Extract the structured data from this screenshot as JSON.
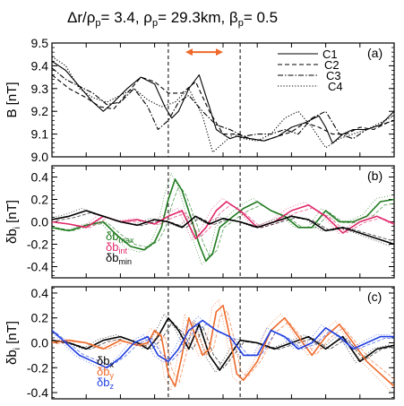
{
  "figure": {
    "title_parts": [
      "Δr/ρ",
      "p",
      "=   3.4, ρ",
      "p",
      "=   29.3km, β",
      "p",
      "= 0.5"
    ]
  },
  "chart_data": [
    {
      "type": "line",
      "panel_label": "(a)",
      "ylabel": "B [nT]",
      "ylim": [
        9.0,
        9.5
      ],
      "yticks": [
        9.0,
        9.1,
        9.2,
        9.3,
        9.4,
        9.5
      ],
      "xlim": [
        0,
        100
      ],
      "vlines": [
        34,
        55
      ],
      "arrow": {
        "from": 39,
        "to": 50,
        "y": 9.46,
        "color": "#ee6a2a"
      },
      "legend": [
        "C1",
        "C2",
        "C3",
        "C4"
      ],
      "series": [
        {
          "name": "C1",
          "style": "solid",
          "color": "#000000",
          "x": [
            0,
            4,
            8,
            12,
            15,
            18,
            22,
            26,
            30,
            33,
            35,
            37,
            40,
            43,
            46,
            48,
            50,
            52,
            54,
            58,
            62,
            66,
            70,
            74,
            78,
            80,
            82,
            85,
            88,
            92,
            96,
            100
          ],
          "y": [
            9.42,
            9.38,
            9.31,
            9.24,
            9.2,
            9.24,
            9.3,
            9.35,
            9.32,
            9.22,
            9.17,
            9.2,
            9.3,
            9.36,
            9.22,
            9.12,
            9.1,
            9.08,
            9.09,
            9.08,
            9.07,
            9.09,
            9.13,
            9.15,
            9.18,
            9.13,
            9.06,
            9.1,
            9.12,
            9.12,
            9.14,
            9.2
          ]
        },
        {
          "name": "C2",
          "style": "dashed",
          "color": "#000000",
          "x": [
            0,
            5,
            10,
            14,
            18,
            22,
            26,
            30,
            34,
            38,
            42,
            46,
            50,
            54,
            58,
            62,
            66,
            70,
            74,
            78,
            82,
            86,
            90,
            94,
            98,
            100
          ],
          "y": [
            9.36,
            9.3,
            9.26,
            9.22,
            9.21,
            9.28,
            9.35,
            9.33,
            9.28,
            9.28,
            9.33,
            9.2,
            9.1,
            9.1,
            9.08,
            9.07,
            9.09,
            9.11,
            9.15,
            9.13,
            9.1,
            9.1,
            9.13,
            9.12,
            9.15,
            9.16
          ]
        },
        {
          "name": "C3",
          "style": "dashdot",
          "color": "#000000",
          "x": [
            0,
            4,
            8,
            12,
            16,
            20,
            24,
            28,
            31,
            34,
            37,
            40,
            44,
            48,
            52,
            56,
            60,
            64,
            68,
            72,
            76,
            80,
            84,
            88,
            92,
            96,
            100
          ],
          "y": [
            9.39,
            9.34,
            9.31,
            9.28,
            9.23,
            9.24,
            9.3,
            9.22,
            9.12,
            9.16,
            9.24,
            9.27,
            9.2,
            9.14,
            9.12,
            9.09,
            9.1,
            9.1,
            9.12,
            9.1,
            9.17,
            9.2,
            9.1,
            9.08,
            9.12,
            9.14,
            9.16
          ]
        },
        {
          "name": "C4",
          "style": "dotted",
          "color": "#000000",
          "x": [
            0,
            4,
            8,
            12,
            16,
            20,
            24,
            28,
            32,
            36,
            40,
            44,
            47,
            50,
            53,
            56,
            60,
            64,
            68,
            72,
            76,
            80,
            84,
            88,
            92,
            96,
            100
          ],
          "y": [
            9.44,
            9.4,
            9.3,
            9.26,
            9.24,
            9.27,
            9.3,
            9.25,
            9.22,
            9.24,
            9.3,
            9.18,
            9.02,
            9.06,
            9.1,
            9.08,
            9.07,
            9.1,
            9.17,
            9.2,
            9.13,
            9.04,
            9.08,
            9.1,
            9.12,
            9.15,
            9.18
          ]
        }
      ]
    },
    {
      "type": "line",
      "panel_label": "(b)",
      "ylabel_parts": [
        "δb",
        "i",
        " [nT]"
      ],
      "ylim": [
        -0.5,
        0.5
      ],
      "yticks": [
        -0.4,
        -0.2,
        0.0,
        0.2,
        0.4
      ],
      "xlim": [
        0,
        100
      ],
      "vlines": [
        34,
        55
      ],
      "component_labels": [
        {
          "text": "δb",
          "sub": "max",
          "color": "#1f7a1f"
        },
        {
          "text": "δb",
          "sub": "int",
          "color": "#e0286a"
        },
        {
          "text": "δb",
          "sub": "min",
          "color": "#000000"
        }
      ],
      "series": [
        {
          "component": "max",
          "color": "#1f7a1f",
          "x": [
            0,
            5,
            10,
            15,
            19,
            23,
            27,
            30,
            32,
            34,
            36,
            38,
            41,
            43,
            45,
            47,
            49,
            51,
            53,
            56,
            60,
            64,
            68,
            72,
            76,
            80,
            84,
            88,
            92,
            96,
            100
          ],
          "y": [
            -0.05,
            -0.08,
            -0.03,
            0.0,
            -0.12,
            -0.22,
            -0.25,
            -0.18,
            -0.05,
            0.2,
            0.38,
            0.28,
            0.0,
            -0.2,
            -0.35,
            -0.28,
            -0.05,
            0.0,
            0.05,
            0.12,
            0.18,
            0.1,
            0.05,
            -0.05,
            -0.05,
            0.1,
            0.0,
            0.0,
            0.05,
            0.18,
            0.2
          ]
        },
        {
          "component": "int",
          "color": "#e0286a",
          "x": [
            0,
            5,
            10,
            15,
            20,
            25,
            30,
            34,
            38,
            42,
            45,
            48,
            51,
            55,
            60,
            65,
            70,
            75,
            80,
            85,
            90,
            95,
            100
          ],
          "y": [
            0.0,
            -0.02,
            -0.05,
            0.05,
            0.0,
            0.02,
            -0.02,
            0.05,
            0.1,
            -0.15,
            -0.05,
            0.1,
            0.18,
            0.1,
            -0.05,
            0.0,
            0.1,
            0.15,
            0.05,
            -0.1,
            0.0,
            0.05,
            -0.02
          ]
        },
        {
          "component": "min",
          "color": "#000000",
          "x": [
            0,
            5,
            10,
            15,
            20,
            25,
            30,
            34,
            38,
            42,
            46,
            50,
            55,
            60,
            65,
            70,
            75,
            80,
            85,
            90,
            95,
            100
          ],
          "y": [
            0.02,
            0.05,
            0.1,
            0.05,
            0.0,
            -0.03,
            0.02,
            0.0,
            -0.05,
            0.05,
            -0.02,
            0.03,
            0.0,
            -0.05,
            0.0,
            0.05,
            0.02,
            -0.08,
            -0.05,
            -0.1,
            -0.15,
            -0.2
          ]
        }
      ]
    },
    {
      "type": "line",
      "panel_label": "(c)",
      "ylabel_parts": [
        "δb",
        "i",
        " [nT]"
      ],
      "ylim": [
        -0.45,
        0.45
      ],
      "yticks": [
        -0.4,
        -0.2,
        0.0,
        0.2,
        0.4
      ],
      "xlim": [
        0,
        100
      ],
      "vlines": [
        34,
        55
      ],
      "component_labels": [
        {
          "text": "δb",
          "sub": "x",
          "color": "#000000"
        },
        {
          "text": "δb",
          "sub": "y",
          "color": "#ee6a2a"
        },
        {
          "text": "δb",
          "sub": "z",
          "color": "#1f3fe0"
        }
      ],
      "series": [
        {
          "component": "x",
          "color": "#000000",
          "x": [
            0,
            5,
            10,
            15,
            20,
            25,
            28,
            31,
            34,
            37,
            40,
            43,
            46,
            49,
            52,
            55,
            60,
            65,
            70,
            75,
            80,
            85,
            90,
            95,
            100
          ],
          "y": [
            0.02,
            0.0,
            -0.05,
            0.02,
            0.05,
            0.0,
            -0.05,
            0.05,
            0.2,
            0.1,
            -0.05,
            0.15,
            -0.1,
            -0.22,
            -0.1,
            0.02,
            0.0,
            -0.05,
            0.0,
            0.05,
            -0.05,
            0.05,
            -0.15,
            -0.05,
            -0.02
          ]
        },
        {
          "component": "y",
          "color": "#ee6a2a",
          "x": [
            0,
            5,
            10,
            15,
            20,
            25,
            28,
            30,
            32,
            34,
            36,
            38,
            40,
            42,
            44,
            46,
            48,
            50,
            52,
            54,
            56,
            60,
            64,
            68,
            72,
            76,
            80,
            84,
            88,
            92,
            96,
            100
          ],
          "y": [
            0.0,
            0.02,
            0.0,
            -0.05,
            0.02,
            -0.02,
            0.0,
            0.1,
            0.05,
            -0.25,
            -0.35,
            -0.1,
            0.2,
            0.05,
            -0.1,
            -0.05,
            0.25,
            0.3,
            0.05,
            -0.25,
            -0.3,
            -0.15,
            0.1,
            0.2,
            0.05,
            -0.1,
            0.05,
            0.15,
            0.0,
            -0.15,
            -0.25,
            -0.35
          ]
        },
        {
          "component": "z",
          "color": "#1f3fe0",
          "x": [
            0,
            4,
            8,
            12,
            16,
            20,
            24,
            28,
            31,
            34,
            37,
            40,
            44,
            48,
            52,
            56,
            60,
            64,
            68,
            72,
            76,
            80,
            84,
            88,
            92,
            96,
            100
          ],
          "y": [
            0.1,
            0.0,
            -0.1,
            -0.15,
            -0.2,
            -0.12,
            0.0,
            0.05,
            -0.1,
            -0.15,
            -0.05,
            0.1,
            0.18,
            0.1,
            0.05,
            -0.1,
            -0.1,
            0.1,
            0.05,
            -0.05,
            0.0,
            0.12,
            0.05,
            -0.05,
            0.0,
            0.05,
            0.05
          ]
        }
      ]
    }
  ]
}
